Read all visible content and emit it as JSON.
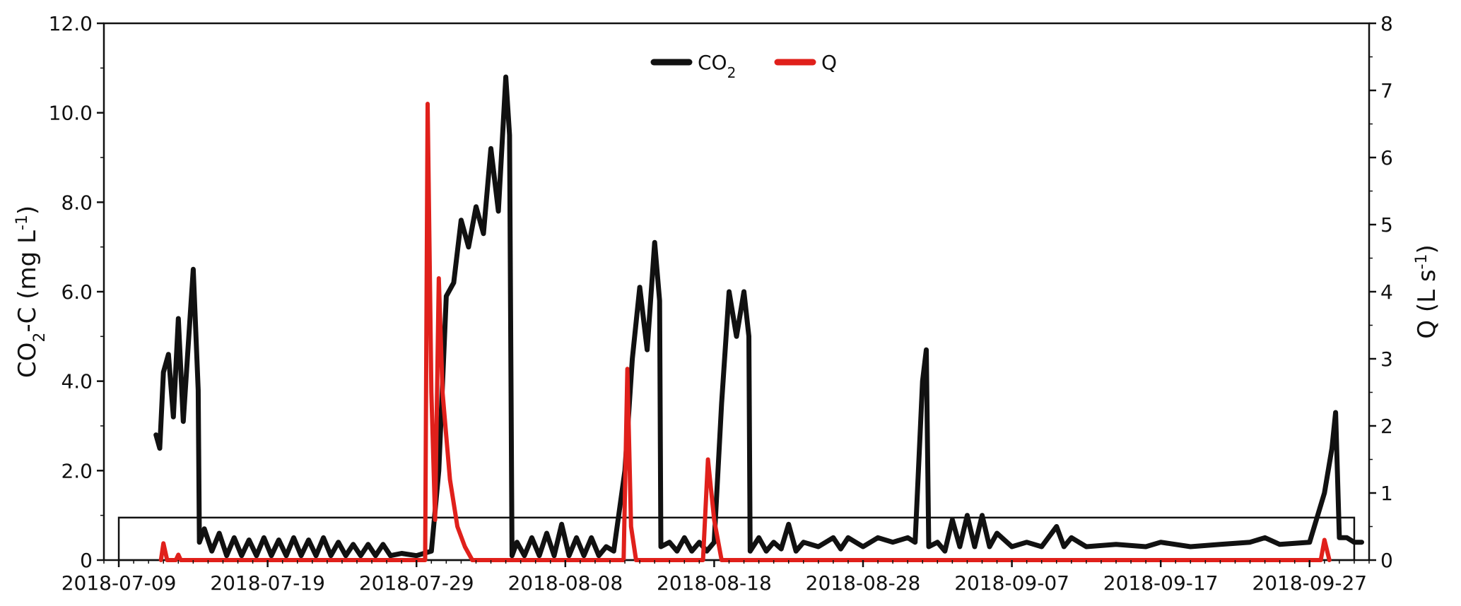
{
  "chart_data": {
    "type": "line",
    "x_axis": {
      "type": "date",
      "range": [
        "2018-07-08",
        "2018-10-01"
      ],
      "ticks": [
        "2018-07-09",
        "2018-07-19",
        "2018-07-29",
        "2018-08-08",
        "2018-08-18",
        "2018-08-28",
        "2018-09-07",
        "2018-09-17",
        "2018-09-27"
      ]
    },
    "y_left": {
      "label_main": "CO",
      "label_sub": "2",
      "label_tail": "-C (mg L",
      "label_sup": "-1",
      "label_close": ")",
      "range": [
        0,
        12
      ],
      "ticks": [
        "0",
        "2.0",
        "4.0",
        "6.0",
        "8.0",
        "10.0",
        "12.0"
      ]
    },
    "y_right": {
      "label_main": "Q (L s",
      "label_sup": "-1",
      "label_close": ")",
      "range": [
        0,
        8
      ],
      "ticks": [
        "0",
        "1",
        "2",
        "3",
        "4",
        "5",
        "6",
        "7",
        "8"
      ]
    },
    "legend": {
      "placement": "top-center",
      "items": [
        {
          "name_main": "CO",
          "name_sub": "2",
          "color": "#111111"
        },
        {
          "name_main": "Q",
          "name_sub": "",
          "color": "#e0201b"
        }
      ]
    },
    "grid": false,
    "annotation": {
      "type": "rectangle",
      "x_range": [
        "2018-07-09",
        "2018-09-30"
      ],
      "y_range": [
        0,
        0.95
      ],
      "axis": "left"
    },
    "series": [
      {
        "name": "CO2",
        "axis": "left",
        "color": "#111111",
        "points": [
          [
            "2018-07-11 12:00",
            2.8
          ],
          [
            "2018-07-11 18:00",
            2.5
          ],
          [
            "2018-07-12 00:00",
            4.2
          ],
          [
            "2018-07-12 08:00",
            4.6
          ],
          [
            "2018-07-12 16:00",
            3.2
          ],
          [
            "2018-07-13 00:00",
            5.4
          ],
          [
            "2018-07-13 08:00",
            3.1
          ],
          [
            "2018-07-13 16:00",
            4.8
          ],
          [
            "2018-07-14 00:00",
            6.5
          ],
          [
            "2018-07-14 08:00",
            3.8
          ],
          [
            "2018-07-14 10:00",
            0.4
          ],
          [
            "2018-07-14 18:00",
            0.7
          ],
          [
            "2018-07-15 06:00",
            0.2
          ],
          [
            "2018-07-15 18:00",
            0.6
          ],
          [
            "2018-07-16 06:00",
            0.1
          ],
          [
            "2018-07-16 18:00",
            0.5
          ],
          [
            "2018-07-17 06:00",
            0.1
          ],
          [
            "2018-07-17 18:00",
            0.45
          ],
          [
            "2018-07-18 06:00",
            0.1
          ],
          [
            "2018-07-18 18:00",
            0.5
          ],
          [
            "2018-07-19 06:00",
            0.1
          ],
          [
            "2018-07-19 18:00",
            0.45
          ],
          [
            "2018-07-20 06:00",
            0.1
          ],
          [
            "2018-07-20 18:00",
            0.5
          ],
          [
            "2018-07-21 06:00",
            0.1
          ],
          [
            "2018-07-21 18:00",
            0.45
          ],
          [
            "2018-07-22 06:00",
            0.1
          ],
          [
            "2018-07-22 18:00",
            0.5
          ],
          [
            "2018-07-23 06:00",
            0.1
          ],
          [
            "2018-07-23 18:00",
            0.4
          ],
          [
            "2018-07-24 06:00",
            0.1
          ],
          [
            "2018-07-24 18:00",
            0.35
          ],
          [
            "2018-07-25 06:00",
            0.1
          ],
          [
            "2018-07-25 18:00",
            0.35
          ],
          [
            "2018-07-26 06:00",
            0.1
          ],
          [
            "2018-07-26 18:00",
            0.35
          ],
          [
            "2018-07-27 06:00",
            0.1
          ],
          [
            "2018-07-28 00:00",
            0.15
          ],
          [
            "2018-07-29 00:00",
            0.1
          ],
          [
            "2018-07-30 00:00",
            0.2
          ],
          [
            "2018-07-30 12:00",
            2.0
          ],
          [
            "2018-07-31 00:00",
            5.9
          ],
          [
            "2018-07-31 12:00",
            6.2
          ],
          [
            "2018-08-01 00:00",
            7.6
          ],
          [
            "2018-08-01 12:00",
            7.0
          ],
          [
            "2018-08-02 00:00",
            7.9
          ],
          [
            "2018-08-02 12:00",
            7.3
          ],
          [
            "2018-08-03 00:00",
            9.2
          ],
          [
            "2018-08-03 12:00",
            7.8
          ],
          [
            "2018-08-04 00:00",
            10.8
          ],
          [
            "2018-08-04 06:00",
            9.5
          ],
          [
            "2018-08-04 10:00",
            0.1
          ],
          [
            "2018-08-04 18:00",
            0.4
          ],
          [
            "2018-08-05 06:00",
            0.1
          ],
          [
            "2018-08-05 18:00",
            0.5
          ],
          [
            "2018-08-06 06:00",
            0.1
          ],
          [
            "2018-08-06 18:00",
            0.6
          ],
          [
            "2018-08-07 06:00",
            0.1
          ],
          [
            "2018-08-07 18:00",
            0.8
          ],
          [
            "2018-08-08 06:00",
            0.1
          ],
          [
            "2018-08-08 18:00",
            0.5
          ],
          [
            "2018-08-09 06:00",
            0.1
          ],
          [
            "2018-08-09 18:00",
            0.5
          ],
          [
            "2018-08-10 06:00",
            0.1
          ],
          [
            "2018-08-10 18:00",
            0.3
          ],
          [
            "2018-08-11 06:00",
            0.2
          ],
          [
            "2018-08-12 00:00",
            2.0
          ],
          [
            "2018-08-12 12:00",
            4.5
          ],
          [
            "2018-08-13 00:00",
            6.1
          ],
          [
            "2018-08-13 12:00",
            4.7
          ],
          [
            "2018-08-14 00:00",
            7.1
          ],
          [
            "2018-08-14 08:00",
            5.8
          ],
          [
            "2018-08-14 10:00",
            0.3
          ],
          [
            "2018-08-15 00:00",
            0.4
          ],
          [
            "2018-08-15 12:00",
            0.2
          ],
          [
            "2018-08-16 00:00",
            0.5
          ],
          [
            "2018-08-16 12:00",
            0.2
          ],
          [
            "2018-08-17 00:00",
            0.4
          ],
          [
            "2018-08-17 12:00",
            0.2
          ],
          [
            "2018-08-18 00:00",
            0.4
          ],
          [
            "2018-08-18 12:00",
            3.5
          ],
          [
            "2018-08-19 00:00",
            6.0
          ],
          [
            "2018-08-19 12:00",
            5.0
          ],
          [
            "2018-08-20 00:00",
            6.0
          ],
          [
            "2018-08-20 08:00",
            5.0
          ],
          [
            "2018-08-20 10:00",
            0.2
          ],
          [
            "2018-08-21 00:00",
            0.5
          ],
          [
            "2018-08-21 12:00",
            0.2
          ],
          [
            "2018-08-22 00:00",
            0.4
          ],
          [
            "2018-08-22 12:00",
            0.25
          ],
          [
            "2018-08-23 00:00",
            0.8
          ],
          [
            "2018-08-23 12:00",
            0.2
          ],
          [
            "2018-08-24 00:00",
            0.4
          ],
          [
            "2018-08-25 00:00",
            0.3
          ],
          [
            "2018-08-26 00:00",
            0.5
          ],
          [
            "2018-08-26 12:00",
            0.25
          ],
          [
            "2018-08-27 00:00",
            0.5
          ],
          [
            "2018-08-28 00:00",
            0.3
          ],
          [
            "2018-08-29 00:00",
            0.5
          ],
          [
            "2018-08-30 00:00",
            0.4
          ],
          [
            "2018-08-31 00:00",
            0.5
          ],
          [
            "2018-08-31 12:00",
            0.4
          ],
          [
            "2018-09-01 00:00",
            4.0
          ],
          [
            "2018-09-01 06:00",
            4.7
          ],
          [
            "2018-09-01 10:00",
            0.3
          ],
          [
            "2018-09-02 00:00",
            0.4
          ],
          [
            "2018-09-02 12:00",
            0.2
          ],
          [
            "2018-09-03 00:00",
            0.9
          ],
          [
            "2018-09-03 12:00",
            0.3
          ],
          [
            "2018-09-04 00:00",
            1.0
          ],
          [
            "2018-09-04 12:00",
            0.3
          ],
          [
            "2018-09-05 00:00",
            1.0
          ],
          [
            "2018-09-05 12:00",
            0.3
          ],
          [
            "2018-09-06 00:00",
            0.6
          ],
          [
            "2018-09-07 00:00",
            0.3
          ],
          [
            "2018-09-08 00:00",
            0.4
          ],
          [
            "2018-09-09 00:00",
            0.3
          ],
          [
            "2018-09-10 00:00",
            0.75
          ],
          [
            "2018-09-10 12:00",
            0.3
          ],
          [
            "2018-09-11 00:00",
            0.5
          ],
          [
            "2018-09-12 00:00",
            0.3
          ],
          [
            "2018-09-14 00:00",
            0.35
          ],
          [
            "2018-09-16 00:00",
            0.3
          ],
          [
            "2018-09-17 00:00",
            0.4
          ],
          [
            "2018-09-19 00:00",
            0.3
          ],
          [
            "2018-09-21 00:00",
            0.35
          ],
          [
            "2018-09-23 00:00",
            0.4
          ],
          [
            "2018-09-24 00:00",
            0.5
          ],
          [
            "2018-09-25 00:00",
            0.35
          ],
          [
            "2018-09-27 00:00",
            0.4
          ],
          [
            "2018-09-28 00:00",
            1.5
          ],
          [
            "2018-09-28 12:00",
            2.5
          ],
          [
            "2018-09-28 18:00",
            3.3
          ],
          [
            "2018-09-29 00:00",
            0.5
          ],
          [
            "2018-09-29 12:00",
            0.5
          ],
          [
            "2018-09-30 00:00",
            0.4
          ],
          [
            "2018-09-30 12:00",
            0.4
          ]
        ]
      },
      {
        "name": "Q",
        "axis": "right",
        "color": "#e0201b",
        "points": [
          [
            "2018-07-11 20:00",
            0.0
          ],
          [
            "2018-07-12 00:00",
            0.25
          ],
          [
            "2018-07-12 06:00",
            0.0
          ],
          [
            "2018-07-12 20:00",
            0.0
          ],
          [
            "2018-07-13 00:00",
            0.08
          ],
          [
            "2018-07-13 04:00",
            0.0
          ],
          [
            "2018-07-29 14:00",
            0.0
          ],
          [
            "2018-07-29 18:00",
            6.8
          ],
          [
            "2018-07-30 00:00",
            2.5
          ],
          [
            "2018-07-30 06:00",
            0.6
          ],
          [
            "2018-07-30 12:00",
            4.2
          ],
          [
            "2018-07-30 18:00",
            2.5
          ],
          [
            "2018-07-31 06:00",
            1.2
          ],
          [
            "2018-07-31 18:00",
            0.5
          ],
          [
            "2018-08-01 06:00",
            0.2
          ],
          [
            "2018-08-01 18:00",
            0.0
          ],
          [
            "2018-08-11 22:00",
            0.0
          ],
          [
            "2018-08-12 04:00",
            2.85
          ],
          [
            "2018-08-12 10:00",
            0.5
          ],
          [
            "2018-08-12 18:00",
            0.0
          ],
          [
            "2018-08-17 06:00",
            0.0
          ],
          [
            "2018-08-17 14:00",
            1.5
          ],
          [
            "2018-08-18 00:00",
            0.6
          ],
          [
            "2018-08-18 12:00",
            0.0
          ],
          [
            "2018-09-27 18:00",
            0.0
          ],
          [
            "2018-09-28 00:00",
            0.3
          ],
          [
            "2018-09-28 08:00",
            0.0
          ]
        ]
      }
    ]
  }
}
